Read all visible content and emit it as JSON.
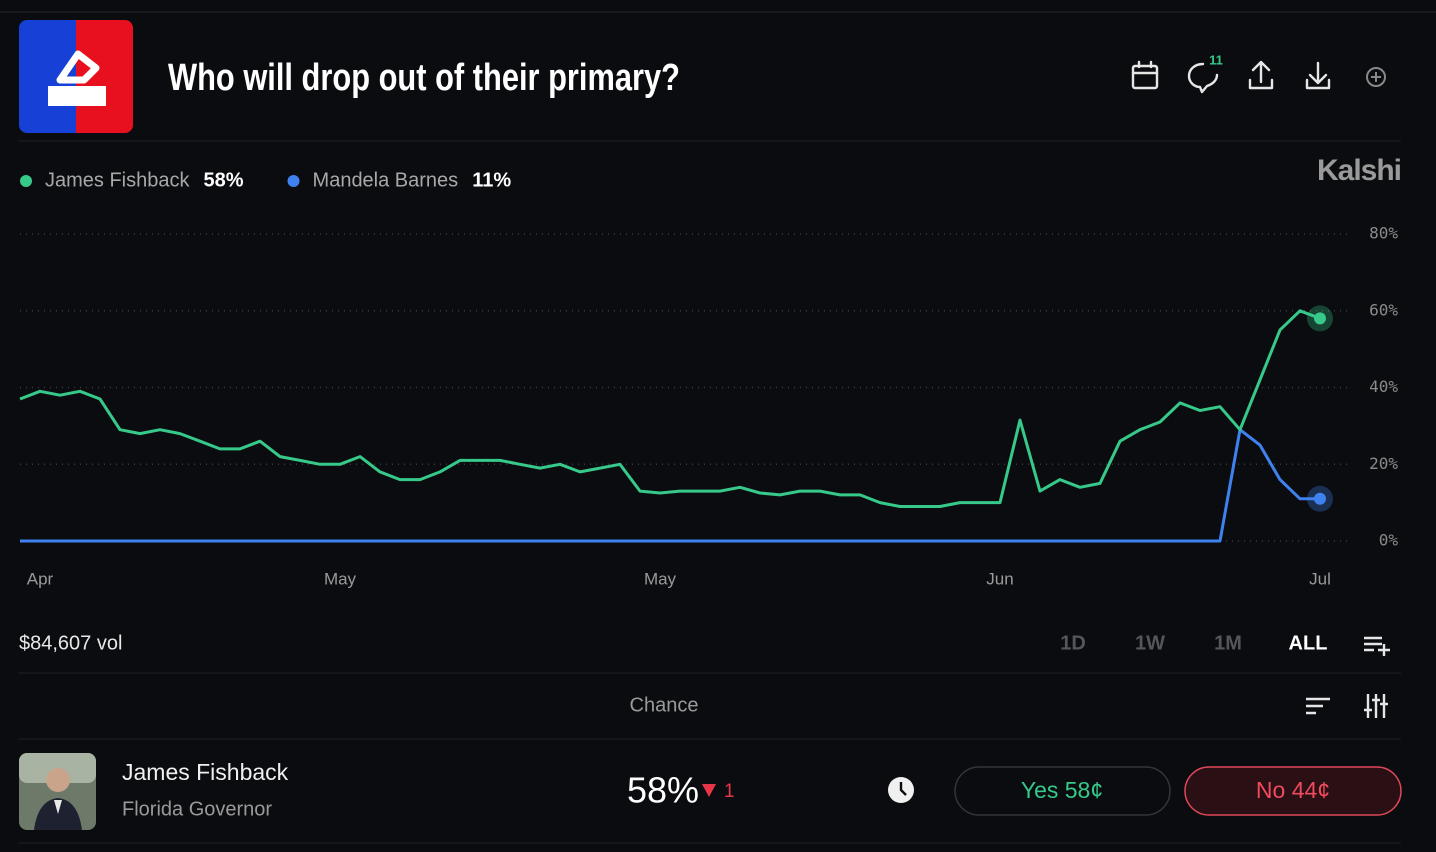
{
  "header": {
    "title": "Who will drop out of their primary?",
    "comment_count": "11"
  },
  "brand": "Kalshi",
  "chart_data": {
    "type": "line",
    "categories": [
      null,
      "Apr",
      null,
      null,
      null,
      null,
      null,
      null,
      null,
      null,
      null,
      null,
      null,
      null,
      null,
      null,
      "May",
      null,
      null,
      null,
      null,
      null,
      null,
      null,
      null,
      null,
      null,
      null,
      null,
      null,
      null,
      null,
      "May",
      null,
      null,
      null,
      null,
      null,
      null,
      null,
      null,
      null,
      null,
      null,
      null,
      null,
      null,
      null,
      null,
      "Jun",
      null,
      null,
      null,
      null,
      null,
      null,
      null,
      null,
      null,
      null,
      null,
      null,
      null,
      null,
      null,
      "Jul"
    ],
    "series": [
      {
        "name": "James Fishback",
        "current": "58%",
        "color": "#36c98a",
        "values": [
          37,
          39,
          38,
          39,
          37,
          29,
          28,
          29,
          28,
          26,
          24,
          24,
          26,
          22,
          21,
          20,
          20,
          22,
          18,
          16,
          16,
          18,
          21,
          21,
          21,
          20,
          19,
          20,
          18,
          19,
          20,
          13,
          12.5,
          13,
          13,
          13,
          14,
          12.5,
          12,
          13,
          13,
          12,
          12,
          10,
          9,
          9,
          9,
          10,
          10,
          10,
          31.5,
          13,
          16,
          14,
          15,
          26,
          29,
          31,
          36,
          34,
          35,
          29,
          42,
          55,
          60,
          58
        ]
      },
      {
        "name": "Mandela Barnes",
        "current": "11%",
        "color": "#3f82ef",
        "values": [
          0,
          0,
          0,
          0,
          0,
          0,
          0,
          0,
          0,
          0,
          0,
          0,
          0,
          0,
          0,
          0,
          0,
          0,
          0,
          0,
          0,
          0,
          0,
          0,
          0,
          0,
          0,
          0,
          0,
          0,
          0,
          0,
          0,
          0,
          0,
          0,
          0,
          0,
          0,
          0,
          0,
          0,
          0,
          0,
          0,
          0,
          0,
          0,
          0,
          0,
          0,
          0,
          0,
          0,
          0,
          0,
          0,
          0,
          0,
          0,
          0,
          29,
          25,
          16,
          11,
          11
        ]
      }
    ],
    "ylim": [
      0,
      80
    ],
    "yticks": [
      {
        "value": 0,
        "label": "0%"
      },
      {
        "value": 20,
        "label": "20%"
      },
      {
        "value": 40,
        "label": "40%"
      },
      {
        "value": 60,
        "label": "60%"
      },
      {
        "value": 80,
        "label": "80%"
      }
    ],
    "grid": true
  },
  "volume": "$84,607 vol",
  "ranges": [
    "1D",
    "1W",
    "1M",
    "ALL"
  ],
  "table": {
    "header": "Chance",
    "rows": [
      {
        "name": "James Fishback",
        "subtitle": "Florida Governor",
        "chance": "58%",
        "change": "1",
        "yes": "Yes 58¢",
        "no": "No 44¢"
      }
    ]
  }
}
